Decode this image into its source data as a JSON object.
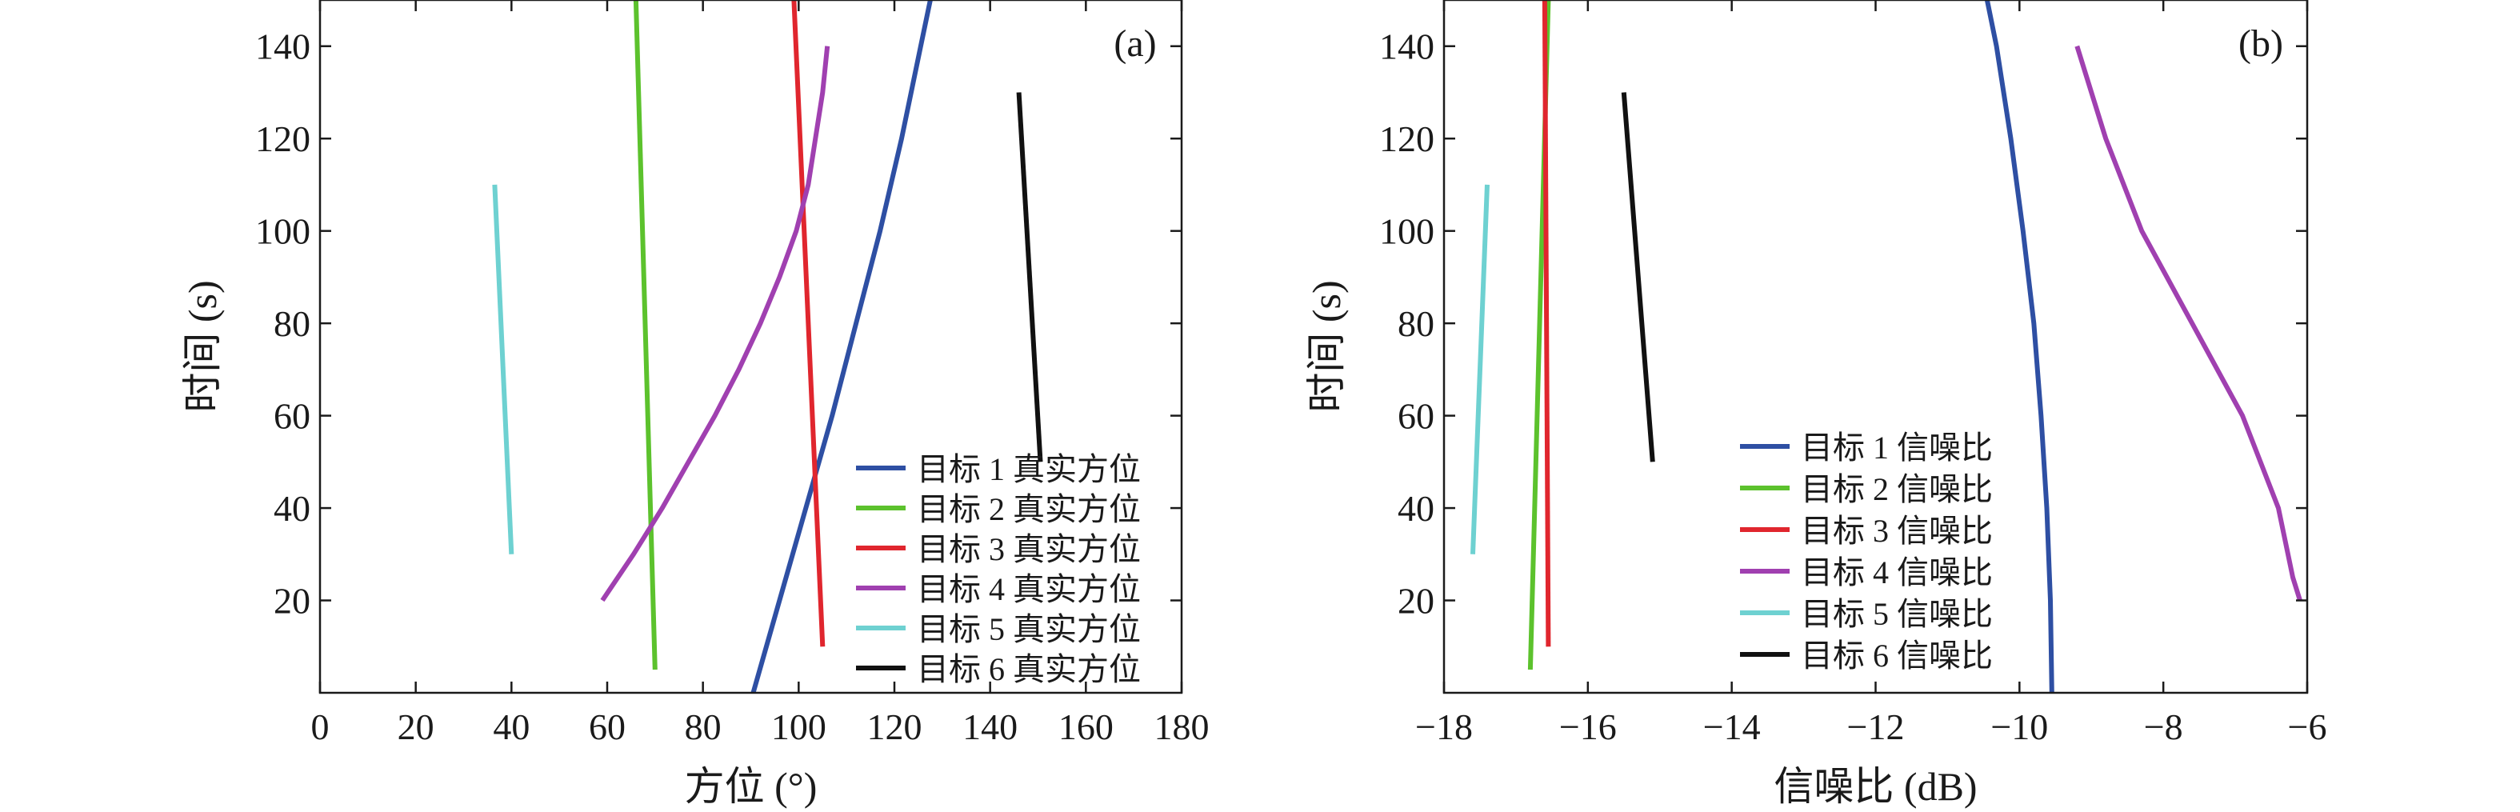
{
  "chart_data": [
    {
      "type": "line",
      "panel_label": "(a)",
      "xlabel": "方位 (°)",
      "ylabel": "时间 (s)",
      "xlim": [
        0,
        180
      ],
      "ylim": [
        0,
        150
      ],
      "xticks": [
        0,
        20,
        40,
        60,
        80,
        100,
        120,
        140,
        160,
        180
      ],
      "xtick_labels": [
        "0",
        "20",
        "40",
        "60",
        "80",
        "100",
        "120",
        "140",
        "160",
        "180"
      ],
      "yticks": [
        20,
        40,
        60,
        80,
        100,
        120,
        140
      ],
      "ytick_labels": [
        "20",
        "40",
        "60",
        "80",
        "100",
        "120",
        "140"
      ],
      "legend_position": "bottom-right",
      "series": [
        {
          "name": "目标 1 真实方位",
          "color": "#2e4fa3",
          "points": [
            [
              90.5,
              0
            ],
            [
              96,
              20
            ],
            [
              101.5,
              40
            ],
            [
              107,
              60
            ],
            [
              112,
              80
            ],
            [
              117,
              100
            ],
            [
              121.5,
              120
            ],
            [
              125.5,
              140
            ],
            [
              127.5,
              150
            ]
          ]
        },
        {
          "name": "目标 2 真实方位",
          "color": "#5cc22d",
          "points": [
            [
              70,
              5
            ],
            [
              66,
              150
            ]
          ]
        },
        {
          "name": "目标 3 真实方位",
          "color": "#e0262e",
          "points": [
            [
              105,
              10
            ],
            [
              99,
              150
            ]
          ]
        },
        {
          "name": "目标 4 真实方位",
          "color": "#a040b0",
          "points": [
            [
              59,
              20
            ],
            [
              65.5,
              30
            ],
            [
              71.5,
              40
            ],
            [
              77,
              50
            ],
            [
              82.5,
              60
            ],
            [
              87.5,
              70
            ],
            [
              92,
              80
            ],
            [
              96,
              90
            ],
            [
              99.5,
              100
            ],
            [
              102,
              110
            ],
            [
              103.5,
              120
            ],
            [
              105,
              130
            ],
            [
              106,
              140
            ]
          ]
        },
        {
          "name": "目标 5 真实方位",
          "color": "#6ed1d1",
          "points": [
            [
              40,
              30
            ],
            [
              36.5,
              110
            ]
          ]
        },
        {
          "name": "目标 6 真实方位",
          "color": "#111111",
          "points": [
            [
              150.5,
              50
            ],
            [
              146,
              130
            ]
          ]
        }
      ]
    },
    {
      "type": "line",
      "panel_label": "(b)",
      "xlabel": "信噪比 (dB)",
      "ylabel": "时间 (s)",
      "xlim": [
        -18,
        -6
      ],
      "ylim": [
        0,
        150
      ],
      "xticks": [
        -18,
        -16,
        -14,
        -12,
        -10,
        -8,
        -6
      ],
      "xtick_labels": [
        "−18",
        "−16",
        "−14",
        "−12",
        "−10",
        "−8",
        "−6"
      ],
      "yticks": [
        20,
        40,
        60,
        80,
        100,
        120,
        140
      ],
      "ytick_labels": [
        "20",
        "40",
        "60",
        "80",
        "100",
        "120",
        "140"
      ],
      "legend_position": "bottom-center",
      "series": [
        {
          "name": "目标 1 信噪比",
          "color": "#2e4fa3",
          "points": [
            [
              -9.55,
              0
            ],
            [
              -9.57,
              20
            ],
            [
              -9.62,
              40
            ],
            [
              -9.7,
              60
            ],
            [
              -9.8,
              80
            ],
            [
              -9.95,
              100
            ],
            [
              -10.12,
              120
            ],
            [
              -10.32,
              140
            ],
            [
              -10.45,
              150
            ]
          ]
        },
        {
          "name": "目标 2 信噪比",
          "color": "#5cc22d",
          "points": [
            [
              -16.8,
              5
            ],
            [
              -16.55,
              150
            ]
          ]
        },
        {
          "name": "目标 3 信噪比",
          "color": "#e0262e",
          "points": [
            [
              -16.55,
              10
            ],
            [
              -16.6,
              150
            ]
          ]
        },
        {
          "name": "目标 4 信噪比",
          "color": "#a040b0",
          "points": [
            [
              -9.2,
              140
            ],
            [
              -8.8,
              120
            ],
            [
              -8.3,
              100
            ],
            [
              -7.6,
              80
            ],
            [
              -6.9,
              60
            ],
            [
              -6.4,
              40
            ],
            [
              -6.2,
              25
            ],
            [
              -6.1,
              20
            ]
          ]
        },
        {
          "name": "目标 5 信噪比",
          "color": "#6ed1d1",
          "points": [
            [
              -17.6,
              30
            ],
            [
              -17.4,
              110
            ]
          ]
        },
        {
          "name": "目标 6 信噪比",
          "color": "#111111",
          "points": [
            [
              -15.1,
              50
            ],
            [
              -15.5,
              130
            ]
          ]
        }
      ]
    }
  ]
}
